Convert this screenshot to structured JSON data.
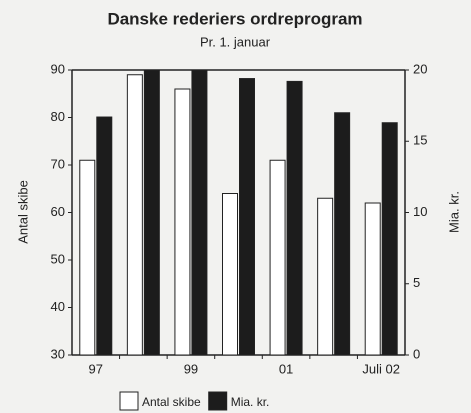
{
  "chart_data": {
    "type": "bar",
    "title": "Danske rederiers ordreprogram",
    "subtitle": "Pr. 1. januar",
    "y_label": "Antal skibe",
    "y2_label": "Mia. kr.",
    "categories": [
      "97",
      null,
      "99",
      null,
      "01",
      null,
      "Juli 02"
    ],
    "series": [
      {
        "name": "Antal skibe",
        "color": "#ffffff",
        "values": [
          71,
          89,
          86,
          64,
          71,
          63,
          62
        ]
      },
      {
        "name": "Mia. kr.",
        "color": "#1c1c1c",
        "axis": "y2",
        "values": [
          16.7,
          20,
          20,
          19.4,
          19.2,
          17,
          16.3
        ]
      }
    ],
    "ylim": [
      30,
      90
    ],
    "yticks": [
      30,
      40,
      50,
      60,
      70,
      80,
      90
    ],
    "y2lim": [
      0,
      20
    ],
    "y2ticks": [
      0,
      5,
      10,
      15,
      20
    ],
    "legend": "bottom"
  }
}
